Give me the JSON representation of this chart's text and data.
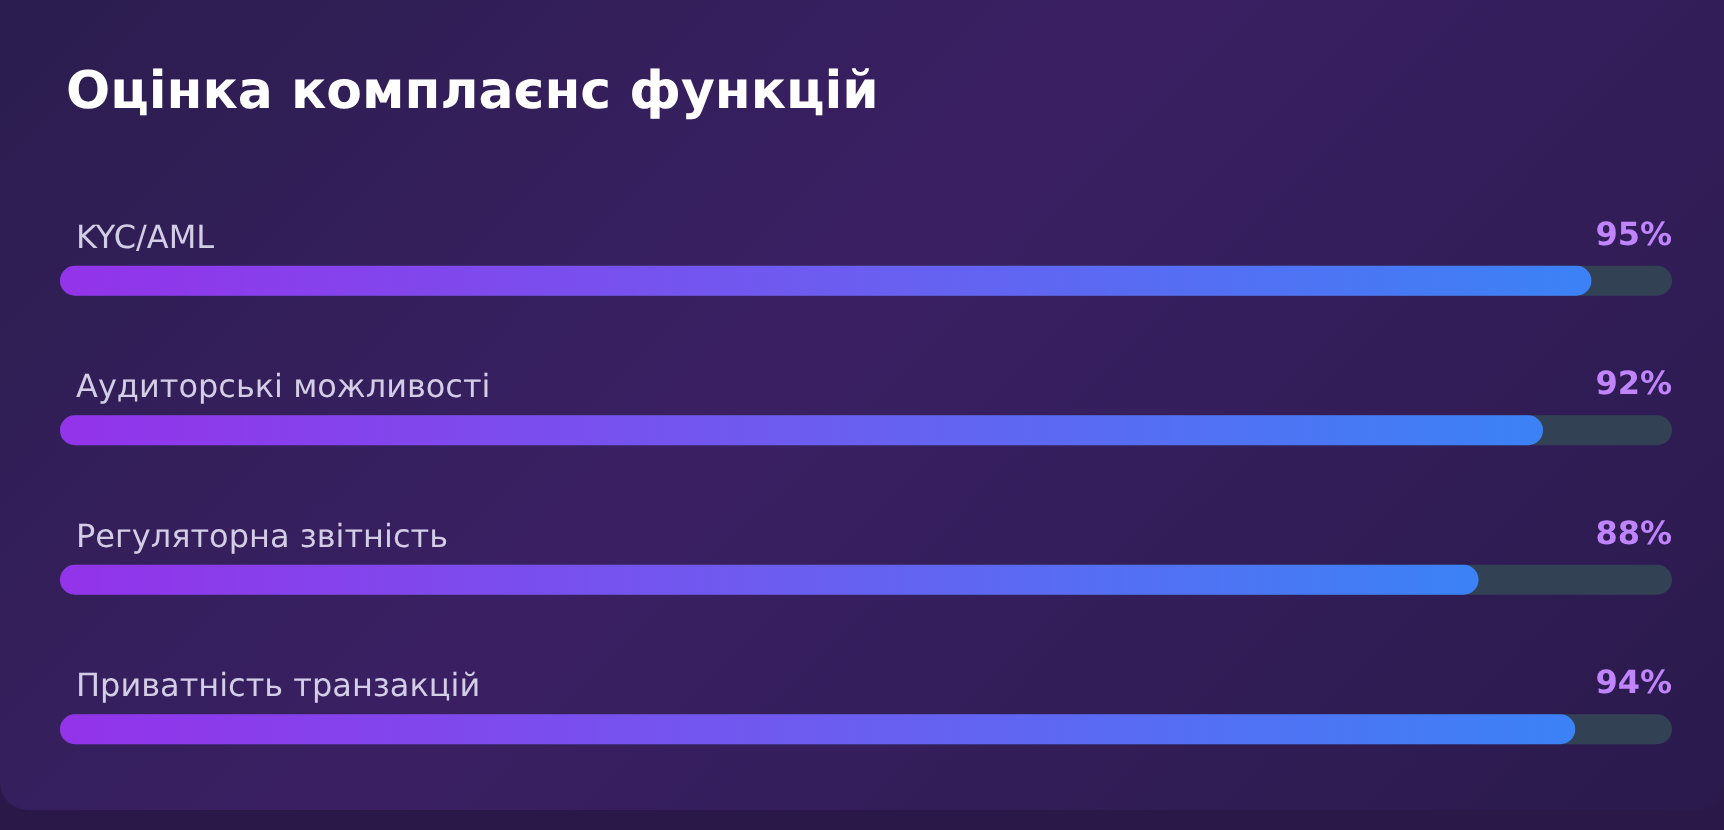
{
  "chart_data": {
    "type": "bar",
    "orientation": "horizontal",
    "title": "Оцінка комплаєнс функцій",
    "categories": [
      "KYC/AML",
      "Аудиторські можливості",
      "Регуляторна звітність",
      "Приватність транзакцій"
    ],
    "series": [
      {
        "color": "#6d5cf0",
        "values": [
          95,
          92,
          88,
          94
        ],
        "value_labels": [
          "95%",
          "92%",
          "88%",
          "94%"
        ]
      }
    ],
    "xlim": [
      0,
      100
    ],
    "tick_labels": false
  }
}
